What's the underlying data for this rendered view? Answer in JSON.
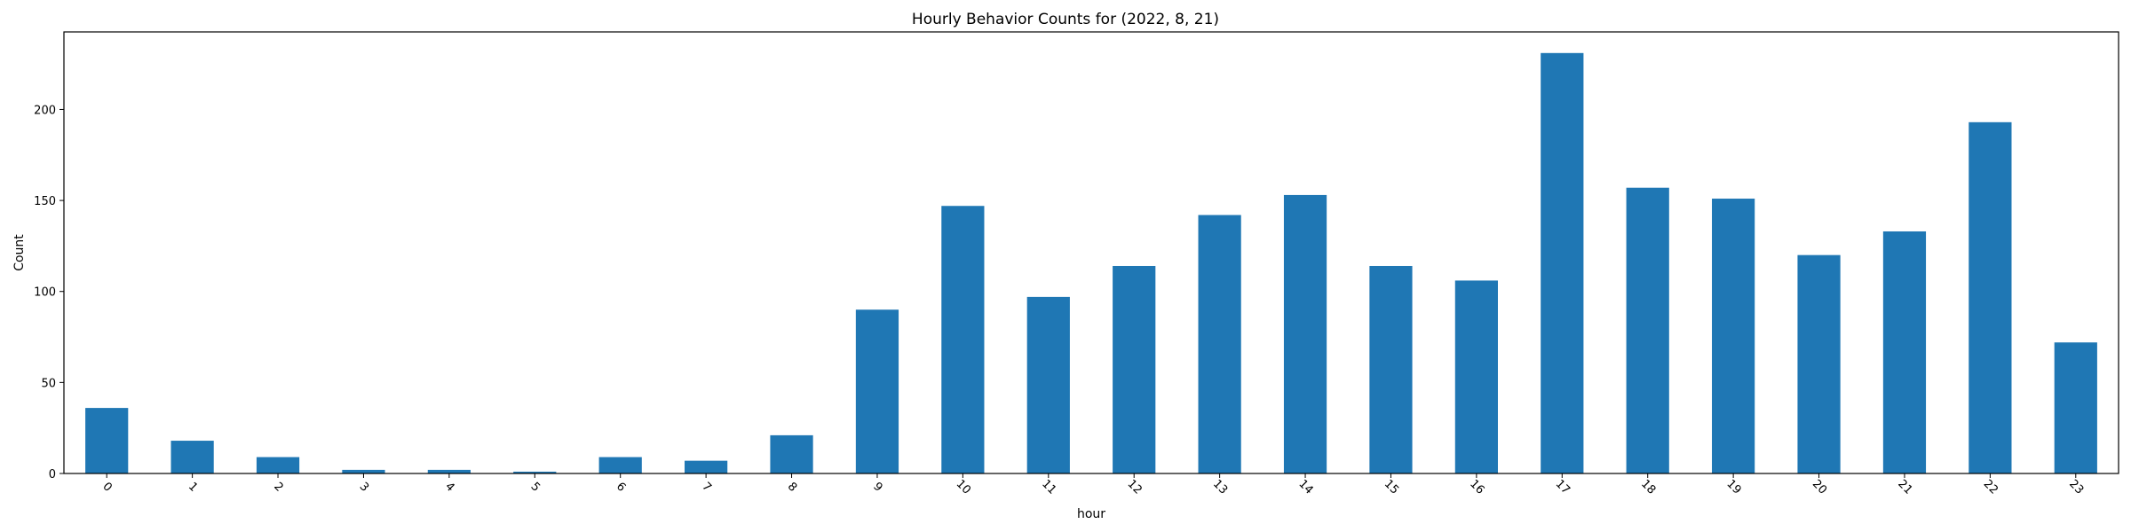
{
  "chart_data": {
    "type": "bar",
    "title": "Hourly Behavior Counts for (2022, 8, 21)",
    "xlabel": "hour",
    "ylabel": "Count",
    "categories": [
      "0",
      "1",
      "2",
      "3",
      "4",
      "5",
      "6",
      "7",
      "8",
      "9",
      "10",
      "11",
      "12",
      "13",
      "14",
      "15",
      "16",
      "17",
      "18",
      "19",
      "20",
      "21",
      "22",
      "23"
    ],
    "values": [
      36,
      18,
      9,
      2,
      2,
      1,
      9,
      7,
      21,
      90,
      147,
      97,
      114,
      142,
      153,
      114,
      106,
      231,
      157,
      151,
      120,
      133,
      193,
      72
    ],
    "ylim": [
      0,
      242.6
    ],
    "yticks": [
      0,
      50,
      100,
      150,
      200
    ],
    "grid": false,
    "bar_color": "#1f77b4"
  }
}
